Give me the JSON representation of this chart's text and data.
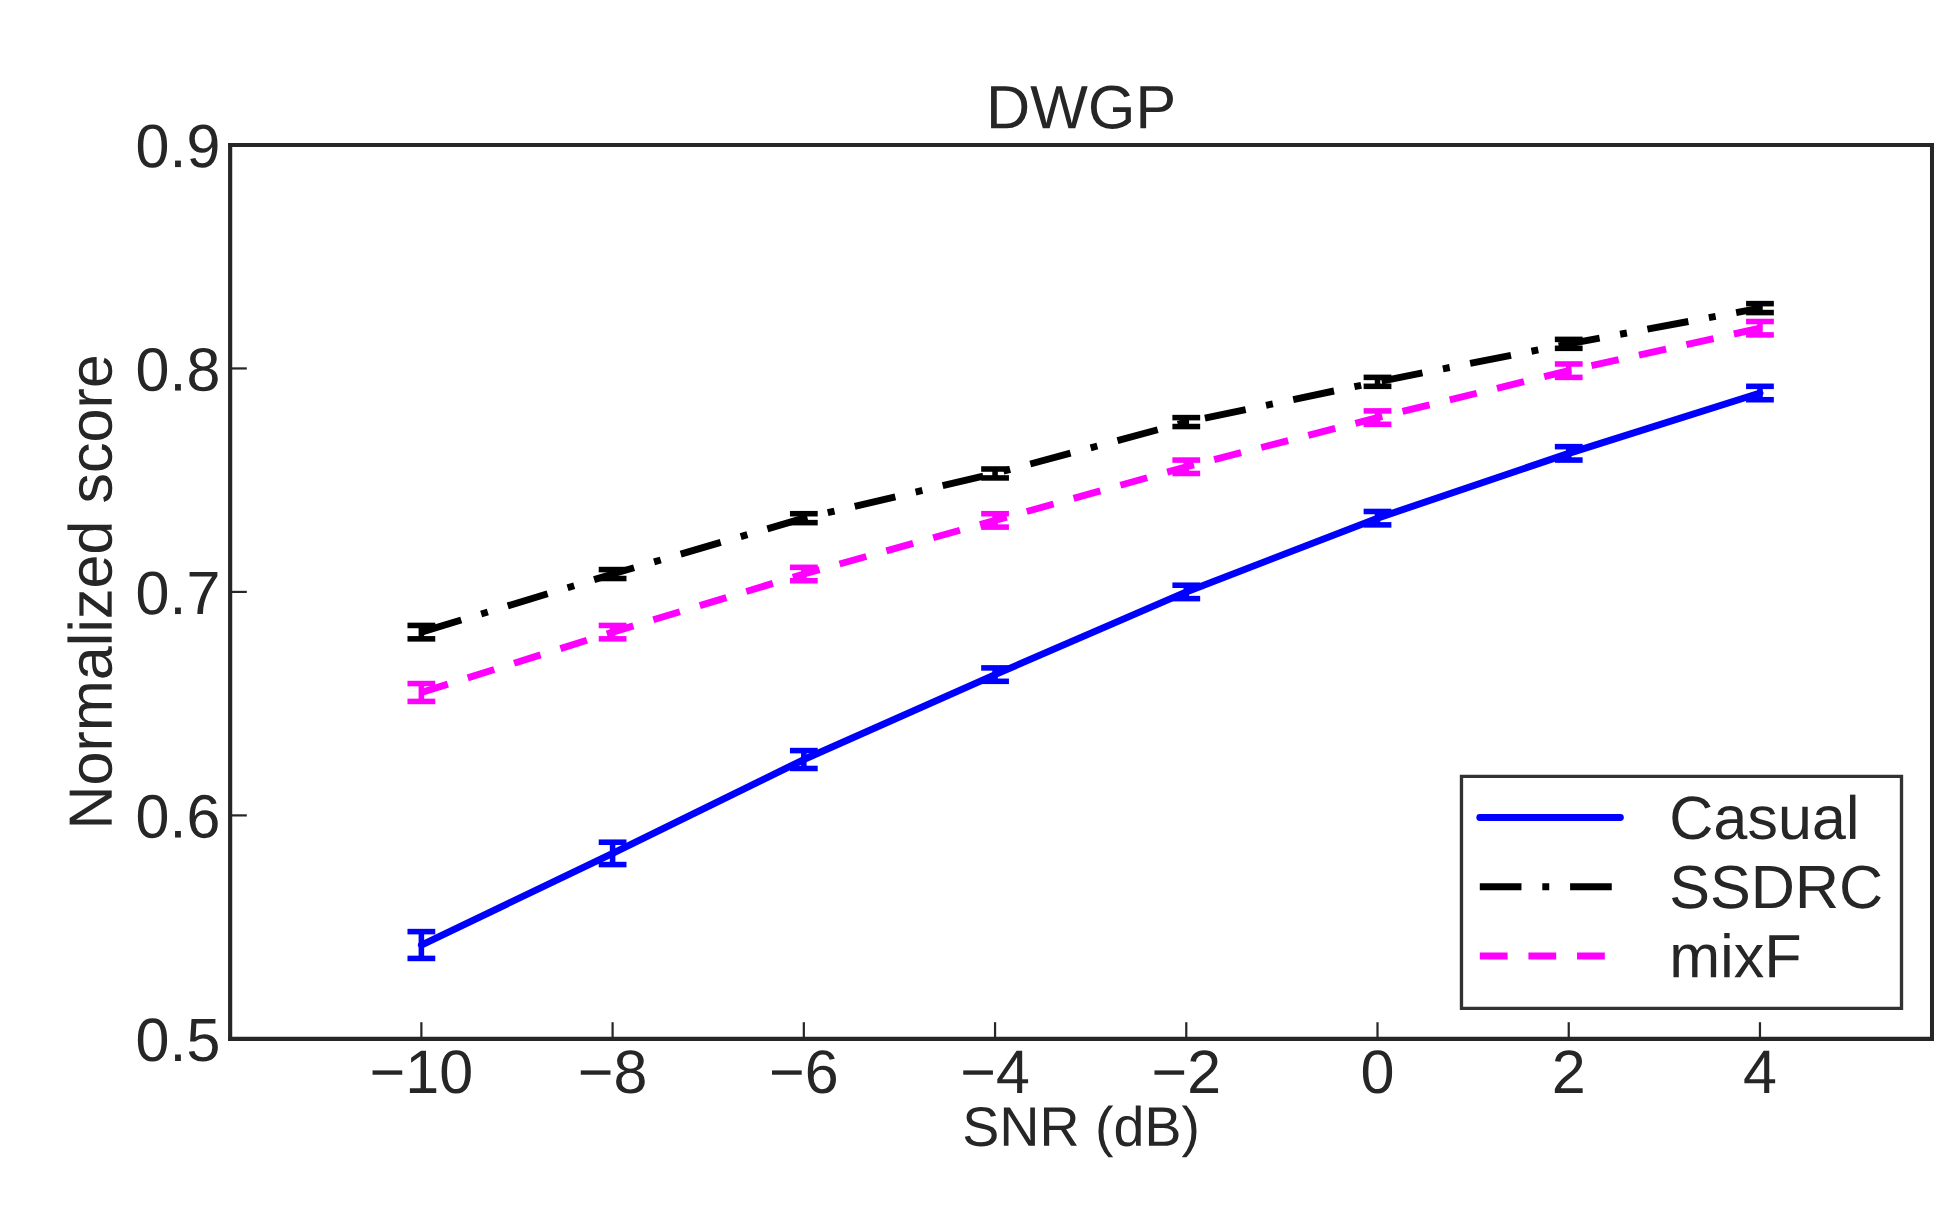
{
  "chart_data": {
    "type": "line",
    "title": "DWGP",
    "xlabel": "SNR (dB)",
    "ylabel": "Normalized score",
    "x": [
      -10,
      -8,
      -6,
      -4,
      -2,
      0,
      2,
      4
    ],
    "series": [
      {
        "name": "Casual",
        "color": "#0000ff",
        "line_style": "solid",
        "values": [
          0.542,
          0.583,
          0.625,
          0.663,
          0.7,
          0.733,
          0.762,
          0.789
        ],
        "errors": [
          0.006,
          0.005,
          0.004,
          0.003,
          0.003,
          0.003,
          0.003,
          0.003
        ]
      },
      {
        "name": "SSDRC",
        "color": "#000000",
        "line_style": "dashdot",
        "values": [
          0.682,
          0.708,
          0.733,
          0.753,
          0.776,
          0.794,
          0.811,
          0.827
        ],
        "errors": [
          0.003,
          0.002,
          0.002,
          0.002,
          0.002,
          0.002,
          0.002,
          0.002
        ]
      },
      {
        "name": "mixF",
        "color": "#ff00ff",
        "line_style": "dashed",
        "values": [
          0.655,
          0.682,
          0.708,
          0.732,
          0.756,
          0.778,
          0.799,
          0.818
        ],
        "errors": [
          0.004,
          0.003,
          0.003,
          0.003,
          0.003,
          0.003,
          0.003,
          0.003
        ]
      }
    ],
    "xlim": [
      -12,
      5.8
    ],
    "xticks": [
      {
        "value": -10,
        "label": "−10"
      },
      {
        "value": -8,
        "label": "−8"
      },
      {
        "value": -6,
        "label": "−6"
      },
      {
        "value": -4,
        "label": "−4"
      },
      {
        "value": -2,
        "label": "−2"
      },
      0,
      2,
      4
    ],
    "ylim": [
      0.5,
      0.9
    ],
    "yticks": [
      0.5,
      0.6,
      0.7,
      0.8,
      0.9
    ],
    "grid": false,
    "legend": "bottom right",
    "marker": "none"
  }
}
